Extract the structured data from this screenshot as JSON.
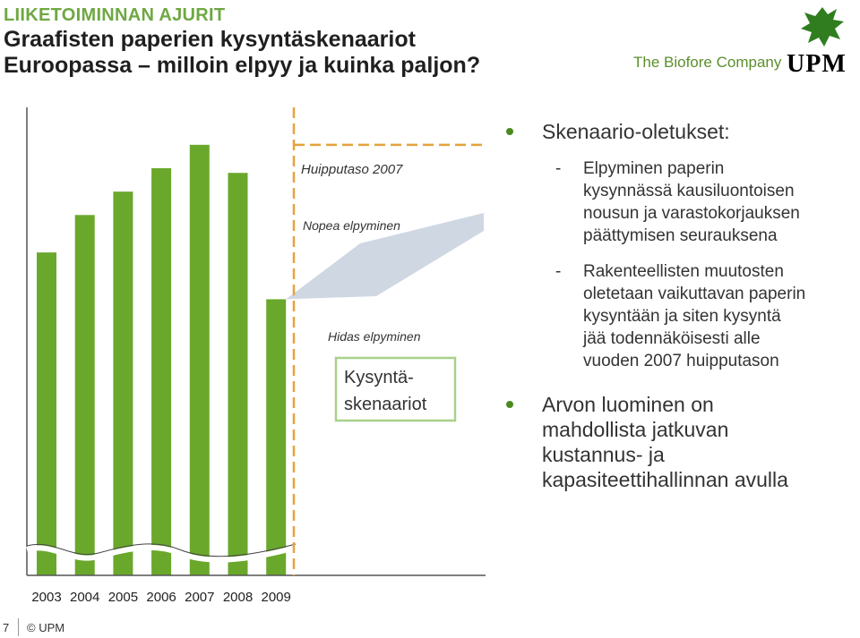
{
  "header": {
    "kicker": "LIIKETOIMINNAN AJURIT",
    "title_line1": "Graafisten paperien kysyntäskenaariot",
    "title_line2": "Euroopassa – milloin elpyy ja kuinka paljon?"
  },
  "brand": {
    "tagline": "The Biofore Company",
    "name": "UPM",
    "color": "#5b8f2c"
  },
  "chart_data": {
    "type": "bar",
    "categories": [
      "2003",
      "2004",
      "2005",
      "2006",
      "2007",
      "2008",
      "2009"
    ],
    "values": [
      69,
      77,
      82,
      87,
      92,
      86,
      59
    ],
    "ylim": [
      0,
      100
    ],
    "axis_break": true,
    "colors": {
      "bar": "#6aa82b",
      "peak_line": "#e8a23d",
      "scenario_fan": "#cfd8e2",
      "box_border": "#a8d18a"
    },
    "annotations": {
      "peak_level": "Huipputaso 2007",
      "fast_recovery": "Nopea elpyminen",
      "slow_recovery": "Hidas elpyminen",
      "scenario_box_line1": "Kysyntä-",
      "scenario_box_line2": "skenaariot"
    }
  },
  "bullets": {
    "heading": "Skenaario-oletukset:",
    "subs": [
      {
        "dash": "-",
        "lines": [
          "Elpyminen paperin",
          "kysynnässä kausiluontoisen",
          "nousun ja varastokorjauksen",
          "päättymisen seurauksena"
        ]
      },
      {
        "dash": "-",
        "lines": [
          "Rakenteellisten muutosten",
          "oletetaan vaikuttavan paperin",
          "kysyntään ja siten kysyntä",
          "jää todennäköisesti alle",
          "vuoden 2007 huipputason"
        ]
      }
    ],
    "second": {
      "lines": [
        "Arvon luominen on",
        "mahdollista jatkuvan",
        "kustannus- ja",
        "kapasiteettihallinnan avulla"
      ]
    }
  },
  "footer": {
    "page": "7",
    "copyright": "© UPM"
  }
}
